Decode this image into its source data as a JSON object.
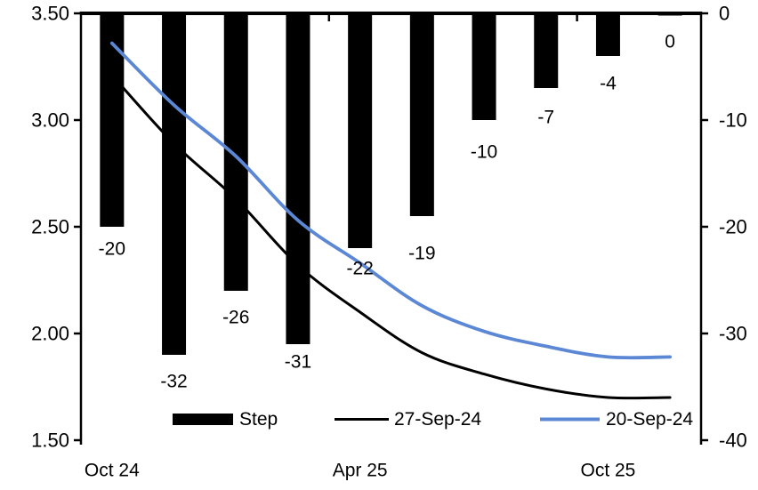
{
  "chart_data": {
    "type": "bar+line combo",
    "title": "",
    "categories_count": 10,
    "x_tick_labels": [
      {
        "index": 0,
        "label": "Oct 24"
      },
      {
        "index": 4,
        "label": "Apr 25"
      },
      {
        "index": 8,
        "label": "Oct 25"
      }
    ],
    "bar_series": {
      "name": "Step",
      "axis": "right",
      "unit": "bp",
      "color": "#000000",
      "values": [
        -20,
        -32,
        -26,
        -31,
        -22,
        -19,
        -10,
        -7,
        -4,
        0
      ],
      "labels": [
        "-20",
        "-32",
        "-26",
        "-31",
        "-22",
        "-19",
        "-10",
        "-7",
        "-4",
        "0"
      ],
      "label_dy": [
        0,
        5,
        5,
        -5,
        -2,
        17,
        11,
        8,
        6,
        7
      ]
    },
    "line_series": [
      {
        "name": "27-Sep-24",
        "axis": "left",
        "color": "#000000",
        "width": 3,
        "z": "below-bars",
        "values": [
          3.21,
          2.89,
          2.63,
          2.32,
          2.1,
          1.91,
          1.81,
          1.74,
          1.7,
          1.7
        ]
      },
      {
        "name": "20-Sep-24",
        "axis": "left",
        "color": "#5B87D5",
        "width": 3.8,
        "z": "above-bars",
        "values": [
          3.36,
          3.07,
          2.83,
          2.53,
          2.33,
          2.13,
          2.01,
          1.94,
          1.89,
          1.89
        ]
      }
    ],
    "left_axis": {
      "min": 1.5,
      "max": 3.5,
      "step": 0.5,
      "tick_labels": [
        "3.50",
        "3.00",
        "2.50",
        "2.00",
        "1.50"
      ]
    },
    "right_axis": {
      "min": -40,
      "max": 0,
      "step": 10,
      "tick_labels": [
        "0",
        "-10",
        "-20",
        "-30",
        "-40"
      ]
    },
    "legend": {
      "position": "bottom-inside",
      "entries": [
        {
          "label": "Step",
          "type": "bar",
          "color": "#000000"
        },
        {
          "label": "27-Sep-24",
          "type": "line",
          "color": "#000000"
        },
        {
          "label": "20-Sep-24",
          "type": "line",
          "color": "#5B87D5"
        }
      ]
    },
    "grid": false,
    "background": "#ffffff"
  }
}
